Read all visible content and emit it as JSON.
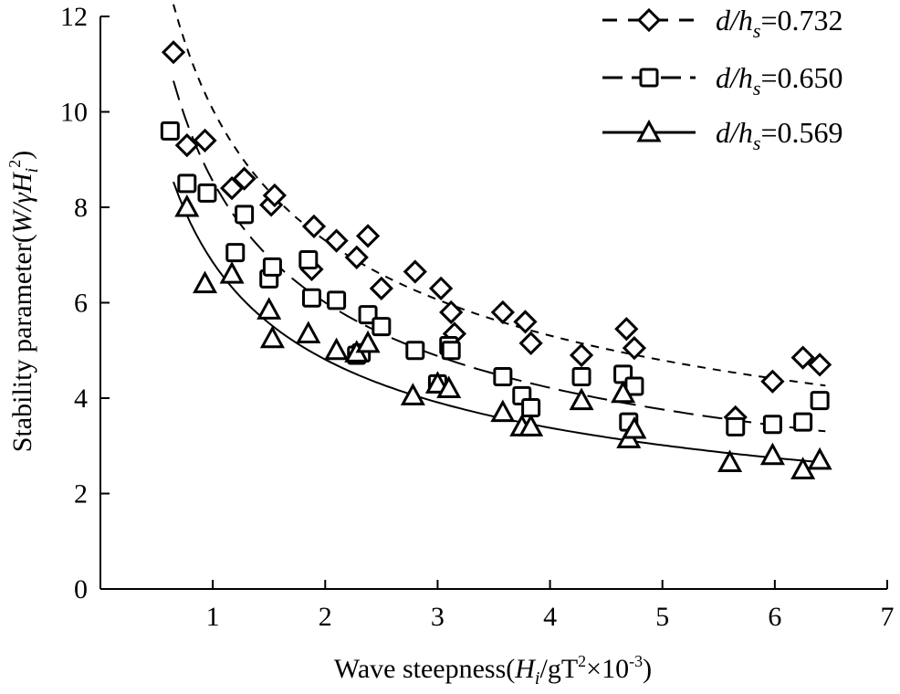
{
  "chart_data": {
    "type": "scatter",
    "title": "",
    "xlabel": {
      "prefix": "Wave steepness(",
      "h": "H",
      "hsub": "i",
      "mid": "/gT",
      "sup1": "2",
      "times": "×10",
      "sup2": "-3",
      "suffix": ")"
    },
    "ylabel": {
      "prefix": "Stability parameter(",
      "w": "W/γH",
      "sub": "i",
      "sup": "2",
      "suffix": ")"
    },
    "xlim": [
      0,
      7
    ],
    "ylim": [
      0,
      12
    ],
    "x_ticks": [
      "1",
      "2",
      "3",
      "4",
      "5",
      "6",
      "7"
    ],
    "y_ticks": [
      "0",
      "2",
      "4",
      "6",
      "8",
      "10",
      "12"
    ],
    "legend_position": "top-right",
    "series": [
      {
        "name": "d/hs=0.732",
        "legend_prefix": "d/h",
        "legend_sub": "s",
        "legend_value": "=0.732",
        "marker": "diamond",
        "line": "dashed",
        "fit": {
          "a": 10.05,
          "b": -0.46
        },
        "points": [
          [
            0.65,
            11.25
          ],
          [
            0.77,
            9.3
          ],
          [
            0.93,
            9.4
          ],
          [
            1.17,
            8.4
          ],
          [
            1.28,
            8.6
          ],
          [
            1.52,
            8.05
          ],
          [
            1.55,
            8.25
          ],
          [
            1.88,
            6.7
          ],
          [
            1.9,
            7.6
          ],
          [
            2.1,
            7.3
          ],
          [
            2.28,
            6.95
          ],
          [
            2.38,
            7.4
          ],
          [
            2.5,
            6.3
          ],
          [
            2.8,
            6.65
          ],
          [
            3.03,
            6.3
          ],
          [
            3.12,
            5.8
          ],
          [
            3.15,
            5.35
          ],
          [
            3.58,
            5.8
          ],
          [
            3.78,
            5.6
          ],
          [
            3.83,
            5.15
          ],
          [
            4.28,
            4.9
          ],
          [
            4.68,
            5.45
          ],
          [
            4.75,
            5.05
          ],
          [
            5.65,
            3.6
          ],
          [
            5.98,
            4.35
          ],
          [
            6.25,
            4.85
          ],
          [
            6.4,
            4.7
          ]
        ]
      },
      {
        "name": "d/hs=0.650",
        "legend_prefix": "d/h",
        "legend_sub": "s",
        "legend_value": "=0.650",
        "marker": "square",
        "line": "long-dash",
        "fit": {
          "a": 8.55,
          "b": -0.51
        },
        "points": [
          [
            0.62,
            9.6
          ],
          [
            0.77,
            8.5
          ],
          [
            0.95,
            8.3
          ],
          [
            1.2,
            7.05
          ],
          [
            1.28,
            7.85
          ],
          [
            1.5,
            6.5
          ],
          [
            1.53,
            6.75
          ],
          [
            1.85,
            6.9
          ],
          [
            1.88,
            6.1
          ],
          [
            2.1,
            6.05
          ],
          [
            2.28,
            4.9
          ],
          [
            2.32,
            4.95
          ],
          [
            2.38,
            5.75
          ],
          [
            2.5,
            5.5
          ],
          [
            2.8,
            5.0
          ],
          [
            3.0,
            4.3
          ],
          [
            3.1,
            5.1
          ],
          [
            3.12,
            5.0
          ],
          [
            3.58,
            4.45
          ],
          [
            3.75,
            4.05
          ],
          [
            3.83,
            3.8
          ],
          [
            4.28,
            4.45
          ],
          [
            4.65,
            4.5
          ],
          [
            4.7,
            3.5
          ],
          [
            4.75,
            4.25
          ],
          [
            5.65,
            3.4
          ],
          [
            5.98,
            3.45
          ],
          [
            6.25,
            3.5
          ],
          [
            6.4,
            3.95
          ]
        ]
      },
      {
        "name": "d/hs=0.569",
        "legend_prefix": "d/h",
        "legend_sub": "s",
        "legend_value": "=0.569",
        "marker": "triangle",
        "line": "solid",
        "fit": {
          "a": 6.85,
          "b": -0.51
        },
        "points": [
          [
            0.77,
            8.0
          ],
          [
            0.93,
            6.4
          ],
          [
            1.17,
            6.6
          ],
          [
            1.5,
            5.85
          ],
          [
            1.53,
            5.25
          ],
          [
            1.85,
            5.35
          ],
          [
            2.1,
            5.0
          ],
          [
            2.28,
            4.95
          ],
          [
            2.38,
            5.15
          ],
          [
            2.78,
            4.05
          ],
          [
            3.0,
            4.3
          ],
          [
            3.1,
            4.2
          ],
          [
            3.58,
            3.7
          ],
          [
            3.75,
            3.4
          ],
          [
            3.83,
            3.4
          ],
          [
            4.28,
            3.95
          ],
          [
            4.65,
            4.1
          ],
          [
            4.7,
            3.15
          ],
          [
            4.75,
            3.35
          ],
          [
            5.6,
            2.65
          ],
          [
            5.98,
            2.8
          ],
          [
            6.25,
            2.5
          ],
          [
            6.4,
            2.7
          ]
        ]
      }
    ]
  }
}
